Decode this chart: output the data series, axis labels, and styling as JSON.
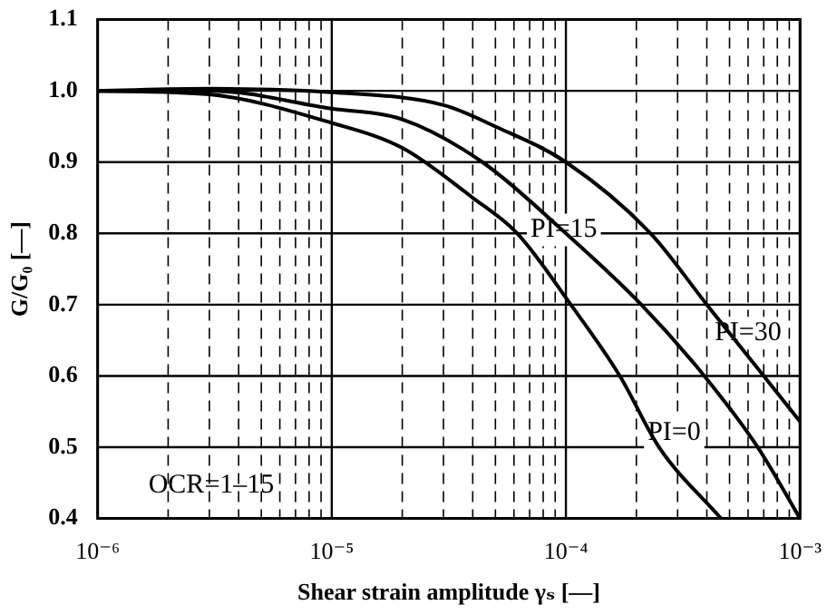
{
  "chart_data": {
    "type": "line",
    "xlabel": "Shear strain amplitude γₛ [—]",
    "ylabel": "G/G₀ [—]",
    "log": "x",
    "grid": true,
    "marker": "none",
    "line_style": "solid",
    "xlim": [
      1e-06,
      0.001
    ],
    "ylim": [
      0.4,
      1.1
    ],
    "xticks": [
      {
        "value": 1e-06,
        "label": "10⁻⁶"
      },
      {
        "value": 2e-06,
        "label": null
      },
      {
        "value": 3e-06,
        "label": null
      },
      {
        "value": 4e-06,
        "label": null
      },
      {
        "value": 5e-06,
        "label": null
      },
      {
        "value": 6e-06,
        "label": null
      },
      {
        "value": 7e-06,
        "label": null
      },
      {
        "value": 8e-06,
        "label": null
      },
      {
        "value": 9e-06,
        "label": null
      },
      {
        "value": 1e-05,
        "label": "10⁻⁵"
      },
      {
        "value": 2e-05,
        "label": null
      },
      {
        "value": 3e-05,
        "label": null
      },
      {
        "value": 4e-05,
        "label": null
      },
      {
        "value": 5e-05,
        "label": null
      },
      {
        "value": 6e-05,
        "label": null
      },
      {
        "value": 7e-05,
        "label": null
      },
      {
        "value": 8e-05,
        "label": null
      },
      {
        "value": 9e-05,
        "label": null
      },
      {
        "value": 0.0001,
        "label": "10⁻⁴"
      },
      {
        "value": 0.0002,
        "label": null
      },
      {
        "value": 0.0003,
        "label": null
      },
      {
        "value": 0.0004,
        "label": null
      },
      {
        "value": 0.0005,
        "label": null
      },
      {
        "value": 0.0006,
        "label": null
      },
      {
        "value": 0.0007,
        "label": null
      },
      {
        "value": 0.0008,
        "label": null
      },
      {
        "value": 0.0009,
        "label": null
      },
      {
        "value": 0.001,
        "label": "10⁻³"
      }
    ],
    "yticks": [
      0.4,
      0.5,
      0.6,
      0.7,
      0.8,
      0.9,
      {
        "value": 1,
        "label": "1.0"
      },
      1.1
    ],
    "series": [
      {
        "color": "#000000",
        "x": [
          1e-06,
          3e-06,
          1e-05,
          2e-05,
          4e-05,
          6.2e-05,
          0.000105,
          0.00017,
          0.00025,
          0.00046
        ],
        "values": [
          1.0,
          0.995,
          0.955,
          0.92,
          0.85,
          0.8,
          0.7,
          0.6,
          0.5,
          0.4
        ]
      },
      {
        "color": "#000000",
        "x": [
          1e-06,
          3e-06,
          1e-05,
          2e-05,
          4.4e-05,
          0.0001,
          0.00021,
          0.00039,
          0.00066,
          0.001
        ],
        "values": [
          1.0,
          1.0,
          0.975,
          0.96,
          0.9,
          0.8,
          0.7,
          0.6,
          0.5,
          0.4
        ]
      },
      {
        "color": "#000000",
        "x": [
          1e-06,
          3e-06,
          1e-05,
          3e-05,
          5e-05,
          0.0001,
          0.00023,
          0.0004,
          0.0007,
          0.001
        ],
        "values": [
          1.0,
          1.003,
          0.998,
          0.98,
          0.95,
          0.9,
          0.8,
          0.7,
          0.6,
          0.536
        ]
      }
    ],
    "annotations": [
      {
        "text": "PI=0",
        "x": 0.00029,
        "y": 0.52
      },
      {
        "text": "PI=15",
        "x": 9.8e-05,
        "y": 0.805
      },
      {
        "text": "PI=30",
        "x": 0.0006,
        "y": 0.66
      },
      "OCR=1–15"
    ]
  }
}
